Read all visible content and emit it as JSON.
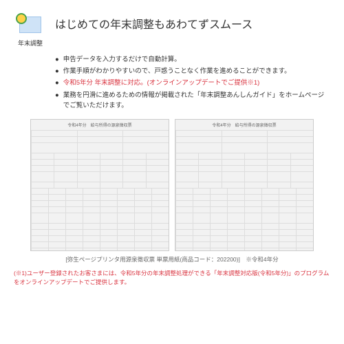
{
  "icon_label": "年末調整",
  "title": "はじめての年末調整もあわてずスムース",
  "bullets": [
    {
      "text": "申告データを入力するだけで自動計算。",
      "red": false
    },
    {
      "text": "作業手順がわかりやすいので、戸惑うことなく作業を進めることができます。",
      "red": false
    },
    {
      "text": "令和5年分 年末調整に対応。(オンラインアップデートでご提供※1)",
      "red": true
    },
    {
      "text": "業務を円滑に進めるための情報が掲載された「年末調整あんしんガイド」をホームページでご覧いただけます。",
      "red": false
    }
  ],
  "form_title_left": "令和4年分　給与所得の源泉徴収票",
  "form_title_right": "令和4年分　給与所得の源泉徴収票",
  "caption": "[弥生ページプリンタ用源泉徴収票 単票用紙(商品コード：202200)]　※令和4年分",
  "footnote_prefix": "(※1)ユーザー登録されたお客さまには、令和5年分の年末調整処理ができる",
  "footnote_red": "「年末調整対応版(令和5年分)」",
  "footnote_suffix": "のプログラムをオンラインアップデートでご提供します。"
}
